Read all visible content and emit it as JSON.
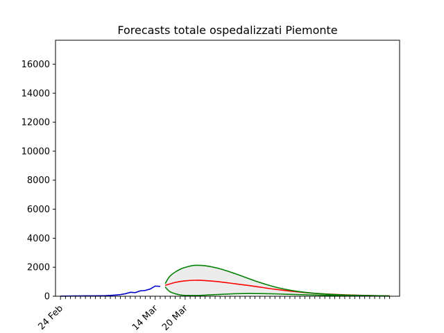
{
  "chart_data": {
    "type": "line",
    "title": "Forecasts totale ospedalizzati Piemonte",
    "xlabel": "",
    "ylabel": "",
    "x_start": "2020-02-24",
    "x_end": "2020-04-30",
    "xlim": [
      "2020-02-23",
      "2020-05-02"
    ],
    "ylim": [
      0,
      17650
    ],
    "y_ticks": [
      0,
      2000,
      4000,
      6000,
      8000,
      10000,
      12000,
      14000,
      16000
    ],
    "x_tick_labels": [
      {
        "date": "2020-02-24",
        "label": "24 Feb"
      },
      {
        "date": "2020-03-14",
        "label": "14 Mar"
      },
      {
        "date": "2020-03-20",
        "label": "20 Mar"
      }
    ],
    "grid": false,
    "legend": "none",
    "series": [
      {
        "role": "observed",
        "color": "#0000cc",
        "points": [
          [
            "2020-02-24",
            10
          ],
          [
            "2020-02-25",
            10
          ],
          [
            "2020-02-26",
            15
          ],
          [
            "2020-02-27",
            20
          ],
          [
            "2020-02-28",
            22
          ],
          [
            "2020-02-29",
            25
          ],
          [
            "2020-03-01",
            25
          ],
          [
            "2020-03-02",
            30
          ],
          [
            "2020-03-03",
            35
          ],
          [
            "2020-03-04",
            40
          ],
          [
            "2020-03-05",
            55
          ],
          [
            "2020-03-06",
            80
          ],
          [
            "2020-03-07",
            110
          ],
          [
            "2020-03-08",
            170
          ],
          [
            "2020-03-09",
            270
          ],
          [
            "2020-03-10",
            250
          ],
          [
            "2020-03-11",
            370
          ],
          [
            "2020-03-12",
            400
          ],
          [
            "2020-03-13",
            500
          ],
          [
            "2020-03-14",
            700
          ],
          [
            "2020-03-15",
            680
          ]
        ]
      },
      {
        "role": "forecast",
        "color": "#ff0000",
        "points": [
          [
            "2020-03-16",
            750
          ],
          [
            "2020-03-18",
            950
          ],
          [
            "2020-03-20",
            1060
          ],
          [
            "2020-03-22",
            1100
          ],
          [
            "2020-03-24",
            1080
          ],
          [
            "2020-03-27",
            990
          ],
          [
            "2020-03-30",
            860
          ],
          [
            "2020-04-03",
            680
          ],
          [
            "2020-04-07",
            480
          ],
          [
            "2020-04-11",
            320
          ],
          [
            "2020-04-15",
            200
          ],
          [
            "2020-04-20",
            110
          ],
          [
            "2020-04-25",
            55
          ],
          [
            "2020-04-30",
            20
          ]
        ]
      },
      {
        "role": "upper-bound",
        "color": "#008000",
        "points": [
          [
            "2020-03-16",
            870
          ],
          [
            "2020-03-17",
            1400
          ],
          [
            "2020-03-19",
            1860
          ],
          [
            "2020-03-21",
            2080
          ],
          [
            "2020-03-22",
            2130
          ],
          [
            "2020-03-24",
            2100
          ],
          [
            "2020-03-27",
            1890
          ],
          [
            "2020-03-30",
            1560
          ],
          [
            "2020-04-03",
            1060
          ],
          [
            "2020-04-07",
            640
          ],
          [
            "2020-04-11",
            360
          ],
          [
            "2020-04-15",
            200
          ],
          [
            "2020-04-20",
            100
          ],
          [
            "2020-04-25",
            50
          ],
          [
            "2020-04-30",
            20
          ]
        ]
      },
      {
        "role": "lower-bound",
        "color": "#008000",
        "points": [
          [
            "2020-03-16",
            640
          ],
          [
            "2020-03-17",
            300
          ],
          [
            "2020-03-19",
            90
          ],
          [
            "2020-03-21",
            50
          ],
          [
            "2020-03-23",
            60
          ],
          [
            "2020-03-26",
            110
          ],
          [
            "2020-03-30",
            170
          ],
          [
            "2020-04-02",
            190
          ],
          [
            "2020-04-06",
            170
          ],
          [
            "2020-04-10",
            130
          ],
          [
            "2020-04-14",
            90
          ],
          [
            "2020-04-19",
            50
          ],
          [
            "2020-04-24",
            25
          ],
          [
            "2020-04-30",
            10
          ]
        ]
      }
    ],
    "band": {
      "between": [
        "upper-bound",
        "lower-bound"
      ],
      "color": "#ececec"
    }
  }
}
